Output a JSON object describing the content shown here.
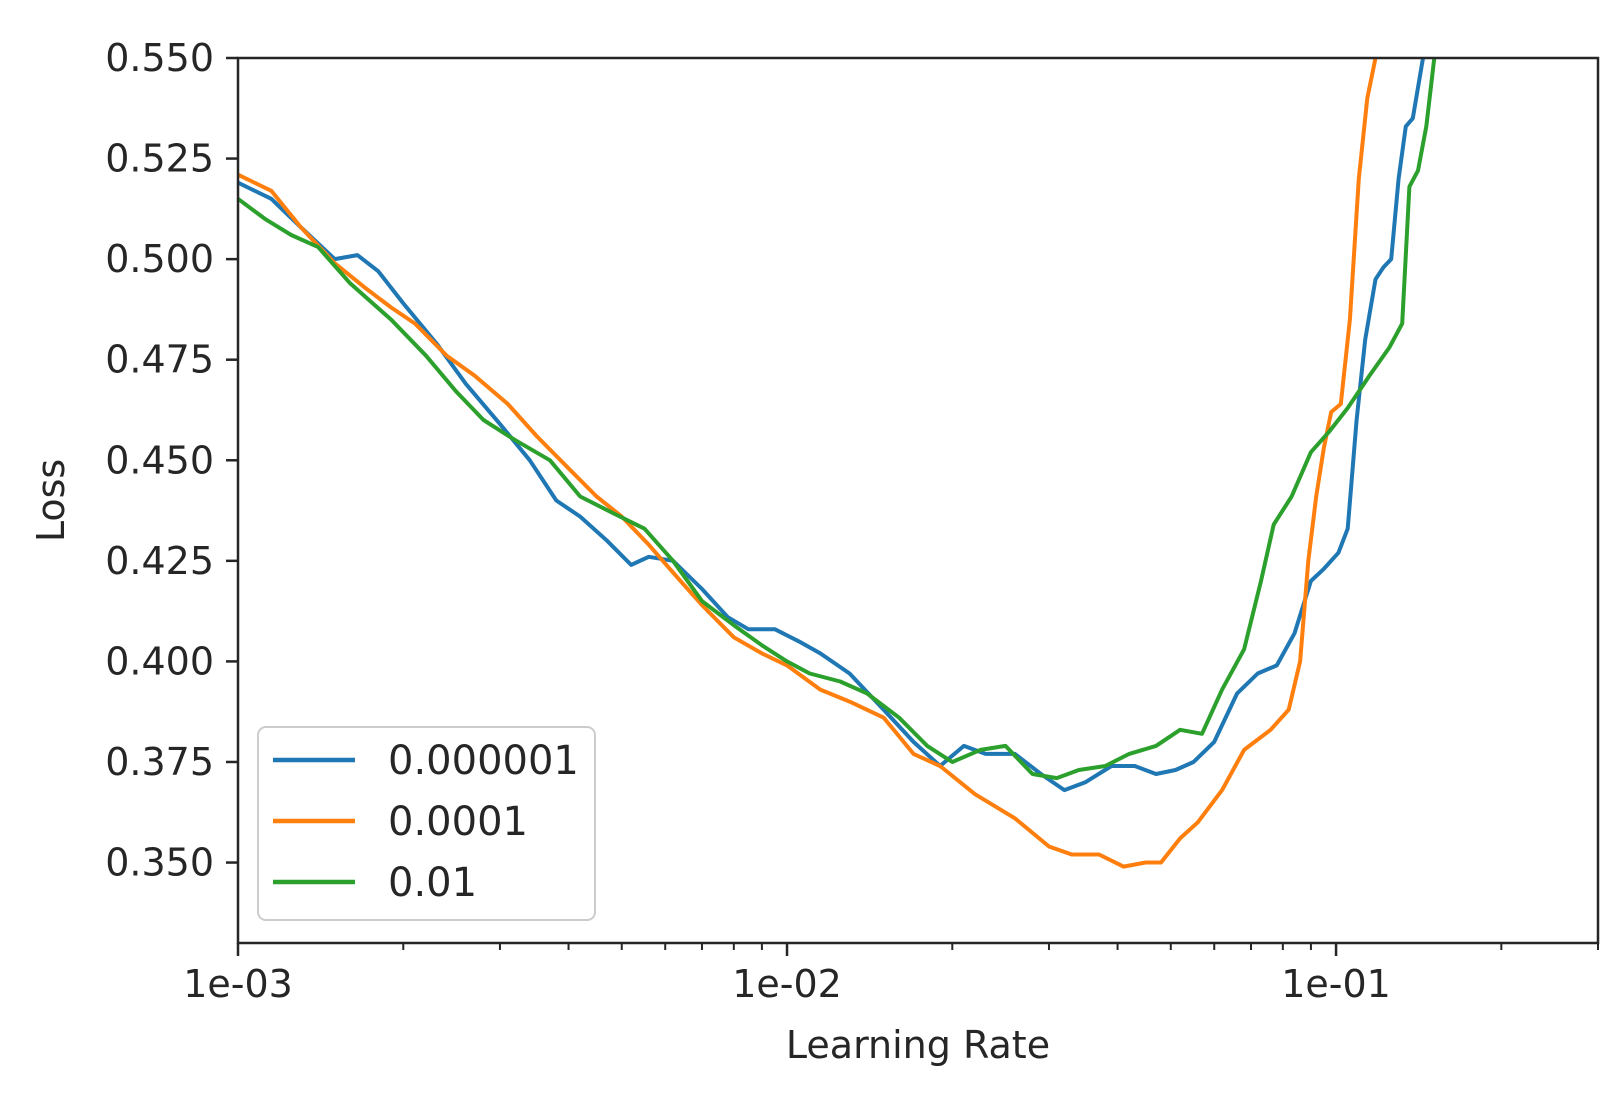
{
  "chart_data": {
    "type": "line",
    "title": "",
    "xlabel": "Learning Rate",
    "ylabel": "Loss",
    "xscale": "log",
    "xlim": [
      0.001,
      0.3
    ],
    "ylim": [
      0.33,
      0.55
    ],
    "grid": false,
    "legend_position": "bottom-left",
    "xticks": [
      {
        "value": 0.001,
        "label": "1e-03"
      },
      {
        "value": 0.01,
        "label": "1e-02"
      },
      {
        "value": 0.1,
        "label": "1e-01"
      }
    ],
    "yticks": [
      {
        "value": 0.35,
        "label": "0.350"
      },
      {
        "value": 0.375,
        "label": "0.375"
      },
      {
        "value": 0.4,
        "label": "0.400"
      },
      {
        "value": 0.425,
        "label": "0.425"
      },
      {
        "value": 0.45,
        "label": "0.450"
      },
      {
        "value": 0.475,
        "label": "0.475"
      },
      {
        "value": 0.5,
        "label": "0.500"
      },
      {
        "value": 0.525,
        "label": "0.525"
      },
      {
        "value": 0.55,
        "label": "0.550"
      }
    ],
    "series": [
      {
        "name": "0.000001",
        "color": "#1f77b4",
        "points": [
          [
            0.001,
            0.519
          ],
          [
            0.00115,
            0.515
          ],
          [
            0.0013,
            0.508
          ],
          [
            0.0015,
            0.5
          ],
          [
            0.00165,
            0.501
          ],
          [
            0.0018,
            0.497
          ],
          [
            0.002,
            0.489
          ],
          [
            0.0023,
            0.479
          ],
          [
            0.0026,
            0.469
          ],
          [
            0.003,
            0.459
          ],
          [
            0.0034,
            0.45
          ],
          [
            0.0038,
            0.44
          ],
          [
            0.0042,
            0.436
          ],
          [
            0.0047,
            0.43
          ],
          [
            0.0052,
            0.424
          ],
          [
            0.0056,
            0.426
          ],
          [
            0.0062,
            0.425
          ],
          [
            0.007,
            0.418
          ],
          [
            0.0078,
            0.411
          ],
          [
            0.0085,
            0.408
          ],
          [
            0.0095,
            0.408
          ],
          [
            0.0105,
            0.405
          ],
          [
            0.0115,
            0.402
          ],
          [
            0.013,
            0.397
          ],
          [
            0.015,
            0.388
          ],
          [
            0.017,
            0.38
          ],
          [
            0.019,
            0.374
          ],
          [
            0.021,
            0.379
          ],
          [
            0.023,
            0.377
          ],
          [
            0.026,
            0.377
          ],
          [
            0.029,
            0.372
          ],
          [
            0.032,
            0.368
          ],
          [
            0.035,
            0.37
          ],
          [
            0.039,
            0.374
          ],
          [
            0.043,
            0.374
          ],
          [
            0.047,
            0.372
          ],
          [
            0.051,
            0.373
          ],
          [
            0.055,
            0.375
          ],
          [
            0.06,
            0.38
          ],
          [
            0.066,
            0.392
          ],
          [
            0.072,
            0.397
          ],
          [
            0.078,
            0.399
          ],
          [
            0.084,
            0.407
          ],
          [
            0.09,
            0.42
          ],
          [
            0.095,
            0.423
          ],
          [
            0.101,
            0.427
          ],
          [
            0.105,
            0.433
          ],
          [
            0.109,
            0.46
          ],
          [
            0.113,
            0.48
          ],
          [
            0.118,
            0.495
          ],
          [
            0.122,
            0.498
          ],
          [
            0.126,
            0.5
          ],
          [
            0.13,
            0.52
          ],
          [
            0.134,
            0.533
          ],
          [
            0.138,
            0.535
          ],
          [
            0.144,
            0.55
          ]
        ]
      },
      {
        "name": "0.0001",
        "color": "#ff7f0e",
        "points": [
          [
            0.001,
            0.521
          ],
          [
            0.00115,
            0.517
          ],
          [
            0.0013,
            0.508
          ],
          [
            0.0015,
            0.499
          ],
          [
            0.0017,
            0.493
          ],
          [
            0.0019,
            0.488
          ],
          [
            0.0021,
            0.484
          ],
          [
            0.0024,
            0.476
          ],
          [
            0.0027,
            0.471
          ],
          [
            0.0031,
            0.464
          ],
          [
            0.0035,
            0.456
          ],
          [
            0.004,
            0.448
          ],
          [
            0.0045,
            0.441
          ],
          [
            0.005,
            0.436
          ],
          [
            0.0056,
            0.429
          ],
          [
            0.0063,
            0.421
          ],
          [
            0.007,
            0.414
          ],
          [
            0.008,
            0.406
          ],
          [
            0.009,
            0.402
          ],
          [
            0.01,
            0.399
          ],
          [
            0.0115,
            0.393
          ],
          [
            0.013,
            0.39
          ],
          [
            0.015,
            0.386
          ],
          [
            0.017,
            0.377
          ],
          [
            0.019,
            0.374
          ],
          [
            0.022,
            0.367
          ],
          [
            0.026,
            0.361
          ],
          [
            0.03,
            0.354
          ],
          [
            0.033,
            0.352
          ],
          [
            0.037,
            0.352
          ],
          [
            0.041,
            0.349
          ],
          [
            0.045,
            0.35
          ],
          [
            0.048,
            0.35
          ],
          [
            0.052,
            0.356
          ],
          [
            0.056,
            0.36
          ],
          [
            0.062,
            0.368
          ],
          [
            0.068,
            0.378
          ],
          [
            0.076,
            0.383
          ],
          [
            0.082,
            0.388
          ],
          [
            0.086,
            0.4
          ],
          [
            0.089,
            0.425
          ],
          [
            0.092,
            0.441
          ],
          [
            0.095,
            0.453
          ],
          [
            0.098,
            0.462
          ],
          [
            0.102,
            0.464
          ],
          [
            0.106,
            0.485
          ],
          [
            0.11,
            0.52
          ],
          [
            0.114,
            0.54
          ],
          [
            0.118,
            0.55
          ]
        ]
      },
      {
        "name": "0.01",
        "color": "#2ca02c",
        "points": [
          [
            0.001,
            0.515
          ],
          [
            0.00112,
            0.51
          ],
          [
            0.00125,
            0.506
          ],
          [
            0.0014,
            0.503
          ],
          [
            0.0016,
            0.494
          ],
          [
            0.0019,
            0.485
          ],
          [
            0.0022,
            0.476
          ],
          [
            0.0025,
            0.467
          ],
          [
            0.0028,
            0.46
          ],
          [
            0.0032,
            0.455
          ],
          [
            0.0037,
            0.45
          ],
          [
            0.0042,
            0.441
          ],
          [
            0.0048,
            0.437
          ],
          [
            0.0055,
            0.433
          ],
          [
            0.0062,
            0.425
          ],
          [
            0.007,
            0.415
          ],
          [
            0.008,
            0.409
          ],
          [
            0.009,
            0.404
          ],
          [
            0.01,
            0.4
          ],
          [
            0.011,
            0.397
          ],
          [
            0.0125,
            0.395
          ],
          [
            0.014,
            0.392
          ],
          [
            0.016,
            0.386
          ],
          [
            0.018,
            0.379
          ],
          [
            0.02,
            0.375
          ],
          [
            0.0225,
            0.378
          ],
          [
            0.025,
            0.379
          ],
          [
            0.028,
            0.372
          ],
          [
            0.031,
            0.371
          ],
          [
            0.034,
            0.373
          ],
          [
            0.038,
            0.374
          ],
          [
            0.042,
            0.377
          ],
          [
            0.047,
            0.379
          ],
          [
            0.052,
            0.383
          ],
          [
            0.057,
            0.382
          ],
          [
            0.062,
            0.393
          ],
          [
            0.068,
            0.403
          ],
          [
            0.073,
            0.42
          ],
          [
            0.077,
            0.434
          ],
          [
            0.083,
            0.441
          ],
          [
            0.09,
            0.452
          ],
          [
            0.097,
            0.457
          ],
          [
            0.105,
            0.463
          ],
          [
            0.115,
            0.471
          ],
          [
            0.125,
            0.478
          ],
          [
            0.132,
            0.484
          ],
          [
            0.136,
            0.518
          ],
          [
            0.141,
            0.522
          ],
          [
            0.146,
            0.533
          ],
          [
            0.151,
            0.55
          ]
        ]
      }
    ]
  }
}
